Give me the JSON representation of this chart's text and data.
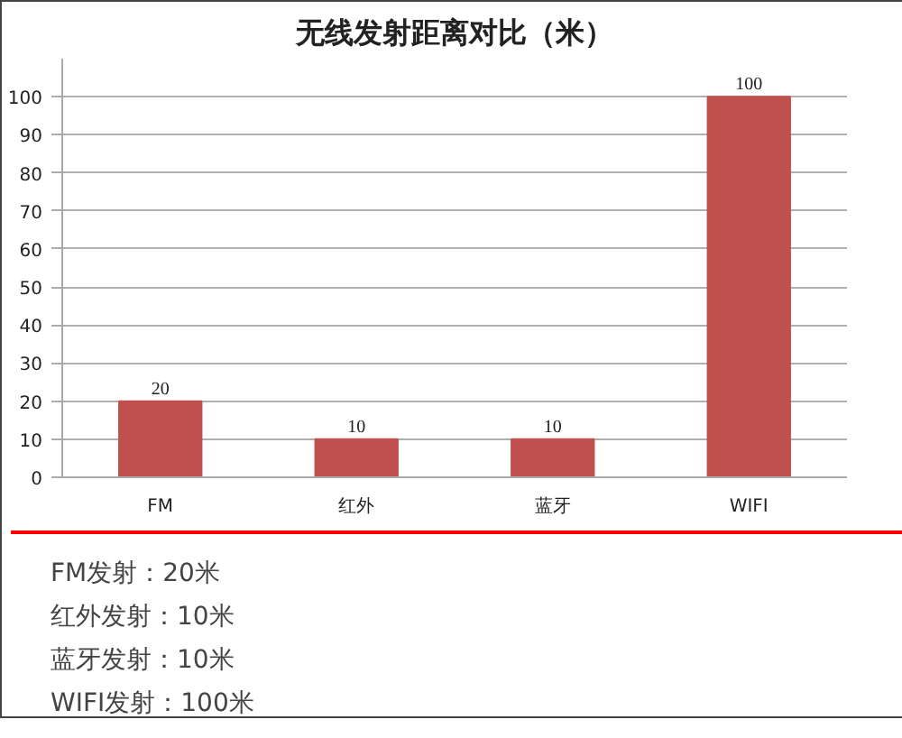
{
  "chart_data": {
    "type": "bar",
    "title": "无线发射距离对比（米）",
    "categories": [
      "FM",
      "红外",
      "蓝牙",
      "WIFI"
    ],
    "values": [
      20,
      10,
      10,
      100
    ],
    "color": "#c0504d",
    "ylim": [
      0,
      110
    ],
    "yticks": [
      0,
      10,
      20,
      30,
      40,
      50,
      60,
      70,
      80,
      90,
      100
    ],
    "grid": "y",
    "data_labels": true,
    "annotations": [
      "FM发射：20米",
      "红外发射：10米",
      "蓝牙发射：10米",
      "WIFI发射：100米"
    ]
  }
}
